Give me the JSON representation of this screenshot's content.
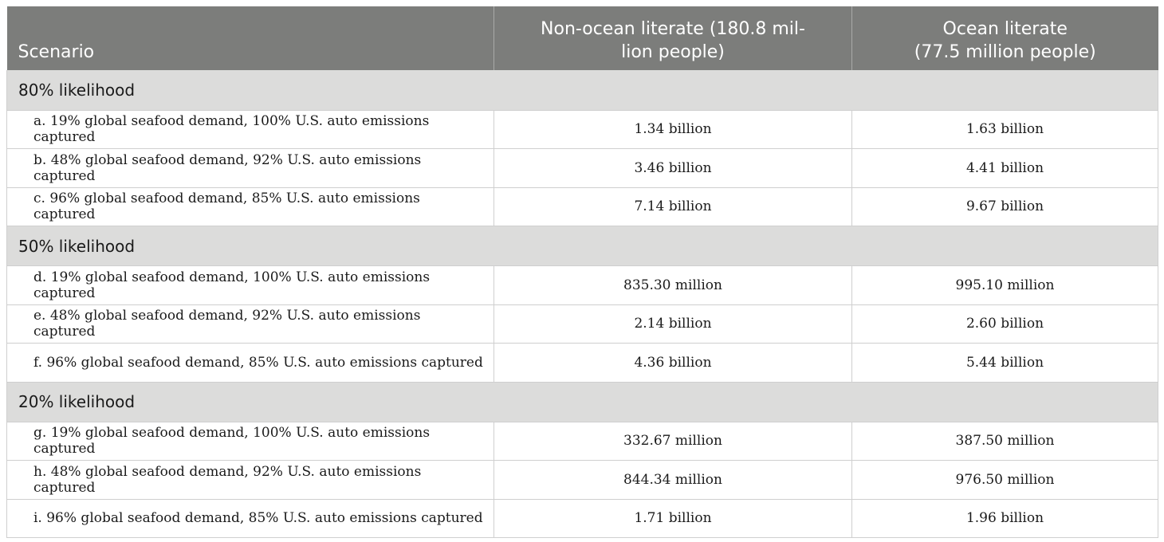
{
  "table": {
    "headers": {
      "scenario": "Scenario",
      "non_ocean": "Non-ocean literate (180.8 mil-\nlion people)",
      "ocean": "Ocean literate\n(77.5 million people)"
    },
    "groups": [
      {
        "label": "80% likelihood",
        "rows": [
          {
            "scenario": "a. 19% global seafood demand, 100% U.S. auto emissions captured",
            "non_ocean": "1.34 billion",
            "ocean": "1.63 billion"
          },
          {
            "scenario": "b. 48% global seafood demand, 92% U.S. auto emissions captured",
            "non_ocean": "3.46 billion",
            "ocean": "4.41 billion"
          },
          {
            "scenario": "c. 96% global seafood demand, 85% U.S. auto emissions captured",
            "non_ocean": "7.14 billion",
            "ocean": "9.67 billion"
          }
        ]
      },
      {
        "label": "50% likelihood",
        "rows": [
          {
            "scenario": "d. 19% global seafood demand, 100% U.S. auto emissions captured",
            "non_ocean": "835.30 million",
            "ocean": "995.10 million"
          },
          {
            "scenario": "e. 48% global seafood demand, 92% U.S. auto emissions captured",
            "non_ocean": "2.14 billion",
            "ocean": "2.60 billion"
          },
          {
            "scenario": "f. 96% global seafood demand, 85% U.S. auto emissions captured",
            "non_ocean": "4.36 billion",
            "ocean": "5.44 billion"
          }
        ]
      },
      {
        "label": "20% likelihood",
        "rows": [
          {
            "scenario": "g. 19% global seafood demand, 100% U.S. auto emissions captured",
            "non_ocean": "332.67 million",
            "ocean": "387.50 million"
          },
          {
            "scenario": "h. 48% global seafood demand, 92% U.S. auto emissions captured",
            "non_ocean": "844.34 million",
            "ocean": "976.50 million"
          },
          {
            "scenario": "i. 96% global seafood demand, 85% U.S. auto emissions captured",
            "non_ocean": "1.71 billion",
            "ocean": "1.96 billion"
          }
        ]
      }
    ]
  }
}
